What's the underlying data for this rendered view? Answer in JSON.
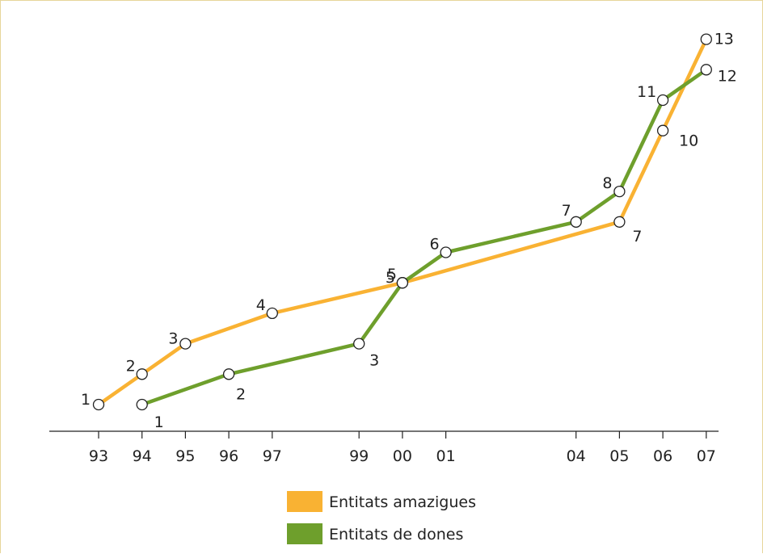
{
  "chart_data": {
    "type": "line",
    "x": [
      "93",
      "94",
      "95",
      "96",
      "97",
      "99",
      "00",
      "01",
      "04",
      "05",
      "06",
      "07"
    ],
    "series": [
      {
        "name": "Entitats amazigues",
        "color": "#f9b233",
        "points": [
          {
            "x": "93",
            "y": 1
          },
          {
            "x": "94",
            "y": 2
          },
          {
            "x": "95",
            "y": 3
          },
          {
            "x": "97",
            "y": 4
          },
          {
            "x": "00",
            "y": 5
          },
          {
            "x": "05",
            "y": 7
          },
          {
            "x": "06",
            "y": 10
          },
          {
            "x": "07",
            "y": 13
          }
        ]
      },
      {
        "name": "Entitats de dones",
        "color": "#6e9f2c",
        "points": [
          {
            "x": "94",
            "y": 1
          },
          {
            "x": "96",
            "y": 2
          },
          {
            "x": "99",
            "y": 3
          },
          {
            "x": "00",
            "y": 5
          },
          {
            "x": "01",
            "y": 6
          },
          {
            "x": "04",
            "y": 7
          },
          {
            "x": "05",
            "y": 8
          },
          {
            "x": "06",
            "y": 11
          },
          {
            "x": "07",
            "y": 12
          }
        ]
      }
    ],
    "title": "",
    "xlabel": "",
    "ylabel": "",
    "legend_position": "bottom-center",
    "grid": false
  }
}
